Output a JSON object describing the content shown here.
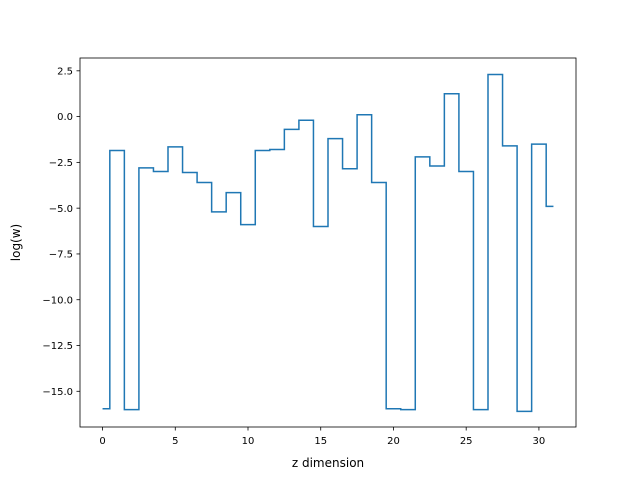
{
  "chart_data": {
    "type": "line",
    "drawstyle": "steps-mid",
    "xlabel": "z dimension",
    "ylabel": "log(w)",
    "xlim": [
      -1.55,
      32.55
    ],
    "ylim": [
      -16.95,
      3.2
    ],
    "xticks": [
      0,
      5,
      10,
      15,
      20,
      25,
      30
    ],
    "xtick_labels": [
      "0",
      "5",
      "10",
      "15",
      "20",
      "25",
      "30"
    ],
    "yticks": [
      2.5,
      0.0,
      -2.5,
      -5.0,
      -7.5,
      -10.0,
      -12.5,
      -15.0
    ],
    "ytick_labels": [
      "2.5",
      "0.0",
      "−2.5",
      "−5.0",
      "−7.5",
      "−10.0",
      "−12.5",
      "−15.0"
    ],
    "grid": false,
    "series": [
      {
        "color": "#1f77b4",
        "x": [
          0,
          1,
          2,
          3,
          4,
          5,
          6,
          7,
          8,
          9,
          10,
          11,
          12,
          13,
          14,
          15,
          16,
          17,
          18,
          19,
          20,
          21,
          22,
          23,
          24,
          25,
          26,
          27,
          28,
          29,
          30,
          31
        ],
        "values": [
          -15.95,
          -1.85,
          -16.0,
          -2.8,
          -3.0,
          -1.65,
          -3.05,
          -3.6,
          -5.2,
          -4.15,
          -5.9,
          -1.85,
          -1.8,
          -0.7,
          -0.2,
          -6.0,
          -1.2,
          -2.85,
          0.1,
          -3.6,
          -15.95,
          -16.0,
          -2.2,
          -2.7,
          1.25,
          -3.0,
          -16.0,
          2.3,
          -1.6,
          -16.1,
          -1.5,
          -4.9
        ]
      }
    ]
  }
}
